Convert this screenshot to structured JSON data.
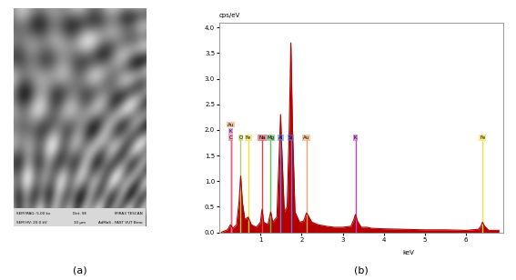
{
  "panel_labels": [
    "(a)",
    "(b)"
  ],
  "image": {
    "type": "micrograph",
    "info_bar": [
      "SEM MAG: 5.00 kx",
      "Det: SE",
      "MIRA3 TESCAN",
      "SEM HV: 20.0 kV",
      "10 µm",
      "AdMaS - FAST VUT Brno"
    ]
  },
  "chart_data": {
    "type": "area",
    "y_label": "cps/eV",
    "x_label": "keV",
    "color": "#b40000",
    "grid": false,
    "x": [
      0.05,
      0.1,
      0.2,
      0.27,
      0.33,
      0.42,
      0.48,
      0.52,
      0.56,
      0.62,
      0.7,
      0.78,
      0.9,
      1.0,
      1.04,
      1.08,
      1.18,
      1.25,
      1.3,
      1.4,
      1.46,
      1.49,
      1.52,
      1.58,
      1.65,
      1.7,
      1.74,
      1.78,
      1.84,
      1.95,
      2.05,
      2.12,
      2.18,
      2.25,
      2.4,
      2.6,
      2.8,
      3.0,
      3.2,
      3.27,
      3.31,
      3.36,
      3.45,
      3.6,
      3.7,
      4.0,
      4.5,
      5.0,
      5.5,
      6.0,
      6.3,
      6.36,
      6.4,
      6.45,
      6.55,
      6.8
    ],
    "values": [
      0.0,
      0.02,
      0.05,
      0.15,
      0.08,
      0.15,
      0.6,
      1.1,
      0.6,
      0.25,
      0.3,
      0.15,
      0.1,
      0.2,
      0.45,
      0.2,
      0.15,
      0.4,
      0.2,
      0.3,
      1.6,
      2.3,
      1.6,
      0.4,
      0.5,
      2.0,
      3.7,
      2.0,
      0.4,
      0.2,
      0.22,
      0.38,
      0.3,
      0.2,
      0.15,
      0.12,
      0.1,
      0.1,
      0.12,
      0.25,
      0.35,
      0.22,
      0.1,
      0.1,
      0.08,
      0.07,
      0.06,
      0.05,
      0.05,
      0.04,
      0.06,
      0.12,
      0.2,
      0.12,
      0.04,
      0.04
    ],
    "xlim": [
      0,
      6.9
    ],
    "ylim": [
      0,
      4.1
    ],
    "xticks": [
      1,
      2,
      3,
      4,
      5,
      6
    ],
    "yticks": [
      {
        "value": 0,
        "label": "0.0"
      },
      0.5,
      {
        "value": 1,
        "label": "1.0"
      },
      1.5,
      {
        "value": 2,
        "label": "2.0"
      },
      2.5,
      {
        "value": 3,
        "label": "3.0"
      },
      3.5,
      {
        "value": 4,
        "label": "4.0"
      }
    ],
    "element_lines": [
      {
        "label": "Au",
        "x": 0.28,
        "color": "#f0a060"
      },
      {
        "label": "K",
        "x": 0.28,
        "color": "#d070d0"
      },
      {
        "label": "C",
        "x": 0.28,
        "color": "#f06080"
      },
      {
        "label": "O",
        "x": 0.52,
        "color": "#b0d060"
      },
      {
        "label": "Fe",
        "x": 0.7,
        "color": "#f0e040"
      },
      {
        "label": "Na",
        "x": 1.04,
        "color": "#e04050"
      },
      {
        "label": "Mg",
        "x": 1.25,
        "color": "#60c060"
      },
      {
        "label": "Al",
        "x": 1.49,
        "color": "#6080f0"
      },
      {
        "label": "Si",
        "x": 1.74,
        "color": "#7070e0"
      },
      {
        "label": "Au",
        "x": 2.12,
        "color": "#f0a060"
      },
      {
        "label": "K",
        "x": 3.31,
        "color": "#c040c0"
      },
      {
        "label": "Fe",
        "x": 6.4,
        "color": "#f0e040"
      }
    ]
  }
}
